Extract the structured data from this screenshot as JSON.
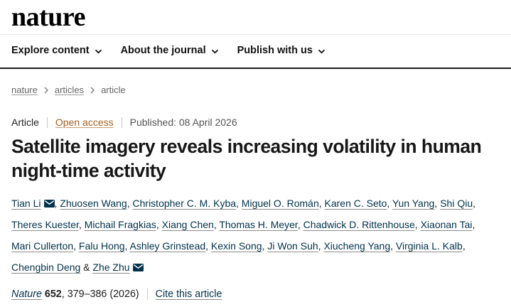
{
  "brand": {
    "logo_text": "nature"
  },
  "nav": {
    "items": [
      {
        "label": "Explore content"
      },
      {
        "label": "About the journal"
      },
      {
        "label": "Publish with us"
      }
    ]
  },
  "breadcrumb": {
    "items": [
      {
        "label": "nature"
      },
      {
        "label": "articles"
      },
      {
        "label": "article"
      }
    ]
  },
  "meta": {
    "type_label": "Article",
    "access_label": "Open access",
    "published_text": "Published: 08 April 2026"
  },
  "title": "Satellite imagery reveals increasing volatility in human night-time activity",
  "authors": [
    {
      "name": "Tian Li",
      "email": true
    },
    {
      "name": "Zhuosen Wang",
      "email": false
    },
    {
      "name": "Christopher C. M. Kyba",
      "email": false
    },
    {
      "name": "Miguel O. Román",
      "email": false
    },
    {
      "name": "Karen C. Seto",
      "email": false
    },
    {
      "name": "Yun Yang",
      "email": false
    },
    {
      "name": "Shi Qiu",
      "email": false
    },
    {
      "name": "Theres Kuester",
      "email": false
    },
    {
      "name": "Michail Fragkias",
      "email": false
    },
    {
      "name": "Xiang Chen",
      "email": false
    },
    {
      "name": "Thomas H. Meyer",
      "email": false
    },
    {
      "name": "Chadwick D. Rittenhouse",
      "email": false
    },
    {
      "name": "Xiaonan Tai",
      "email": false
    },
    {
      "name": "Mari Cullerton",
      "email": false
    },
    {
      "name": "Falu Hong",
      "email": false
    },
    {
      "name": "Ashley Grinstead",
      "email": false
    },
    {
      "name": "Kexin Song",
      "email": false
    },
    {
      "name": "Ji Won Suh",
      "email": false
    },
    {
      "name": "Xiucheng Yang",
      "email": false
    },
    {
      "name": "Virginia L. Kalb",
      "email": false
    },
    {
      "name": "Chengbin Deng",
      "email": false
    },
    {
      "name": "Zhe Zhu",
      "email": true
    }
  ],
  "citation": {
    "journal": "Nature",
    "volume": "652",
    "pages_suffix": ", 379–386 (2026)",
    "cite_label": "Cite this article"
  },
  "icons": {
    "email": "envelope-icon",
    "nav_item_chevron": "chevron-down-icon",
    "breadcrumb_separator": "chevron-right-icon"
  },
  "colors": {
    "brand_black": "#000000",
    "link_dark": "#01324b",
    "open_access": "#a8601e",
    "text_gray": "#666666",
    "rule_dark": "#1d1d1d"
  }
}
